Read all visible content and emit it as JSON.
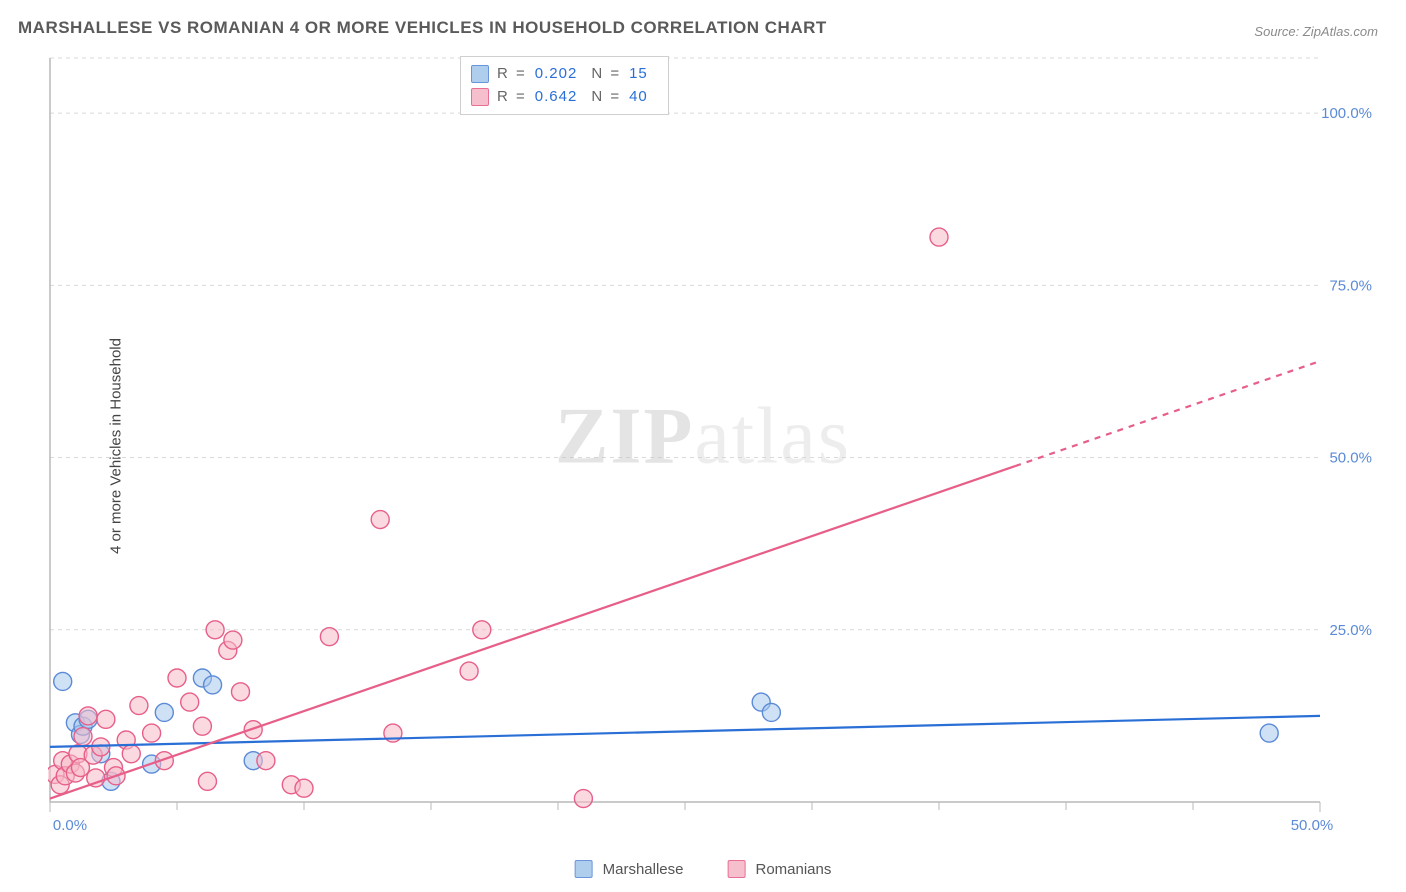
{
  "title": "MARSHALLESE VS ROMANIAN 4 OR MORE VEHICLES IN HOUSEHOLD CORRELATION CHART",
  "source_label": "Source:",
  "source_value": "ZipAtlas.com",
  "ylabel": "4 or more Vehicles in Household",
  "watermark_bold": "ZIP",
  "watermark_light": "atlas",
  "chart": {
    "type": "scatter",
    "xlim": [
      0,
      50
    ],
    "ylim": [
      0,
      108
    ],
    "xtick_major": [
      0,
      50
    ],
    "xtick_minor": [
      5,
      10,
      15,
      20,
      25,
      30,
      35,
      40,
      45
    ],
    "ytick_labels": [
      {
        "v": 25,
        "t": "25.0%"
      },
      {
        "v": 50,
        "t": "50.0%"
      },
      {
        "v": 75,
        "t": "75.0%"
      },
      {
        "v": 100,
        "t": "100.0%"
      }
    ],
    "xtick_labels": [
      {
        "v": 0,
        "t": "0.0%"
      },
      {
        "v": 50,
        "t": "50.0%"
      }
    ],
    "grid_color": "#d9d9d9",
    "axis_color": "#b9b9b9",
    "background": "#ffffff",
    "series": [
      {
        "name": "Marshallese",
        "color_fill": "#a7c8ec",
        "color_stroke": "#5b8ad6",
        "fill_opacity": 0.55,
        "marker_r": 9,
        "line_color": "#2a6fd6",
        "line_width": 2.2,
        "trend": {
          "x1": 0,
          "y1": 8.0,
          "x2": 50,
          "y2": 12.5
        },
        "R": "0.202",
        "N": "15",
        "points": [
          [
            0.5,
            17.5
          ],
          [
            1.0,
            11.5
          ],
          [
            1.2,
            9.8
          ],
          [
            1.3,
            11.0
          ],
          [
            1.5,
            12.0
          ],
          [
            2.0,
            7.0
          ],
          [
            2.4,
            3.0
          ],
          [
            4.0,
            5.5
          ],
          [
            4.5,
            13.0
          ],
          [
            6.0,
            18.0
          ],
          [
            6.4,
            17.0
          ],
          [
            8.0,
            6.0
          ],
          [
            28.0,
            14.5
          ],
          [
            28.4,
            13.0
          ],
          [
            48.0,
            10.0
          ]
        ]
      },
      {
        "name": "Romanians",
        "color_fill": "#f6b9c9",
        "color_stroke": "#e75f89",
        "fill_opacity": 0.55,
        "marker_r": 9,
        "line_color": "#e75f89",
        "line_width": 2.2,
        "trend": {
          "x1": 0,
          "y1": 0.5,
          "x2": 50,
          "y2": 64
        },
        "trend_dash_from_x": 38,
        "R": "0.642",
        "N": "40",
        "points": [
          [
            0.2,
            4.0
          ],
          [
            0.4,
            2.5
          ],
          [
            0.5,
            6.0
          ],
          [
            0.6,
            3.8
          ],
          [
            0.8,
            5.5
          ],
          [
            1.0,
            4.2
          ],
          [
            1.1,
            7.0
          ],
          [
            1.2,
            5.0
          ],
          [
            1.3,
            9.5
          ],
          [
            1.5,
            12.5
          ],
          [
            1.7,
            6.8
          ],
          [
            1.8,
            3.5
          ],
          [
            2.0,
            8.0
          ],
          [
            2.2,
            12.0
          ],
          [
            2.5,
            5.0
          ],
          [
            2.6,
            3.8
          ],
          [
            3.0,
            9.0
          ],
          [
            3.2,
            7.0
          ],
          [
            3.5,
            14.0
          ],
          [
            4.0,
            10.0
          ],
          [
            4.5,
            6.0
          ],
          [
            5.0,
            18.0
          ],
          [
            5.5,
            14.5
          ],
          [
            6.0,
            11.0
          ],
          [
            6.2,
            3.0
          ],
          [
            6.5,
            25.0
          ],
          [
            7.0,
            22.0
          ],
          [
            7.2,
            23.5
          ],
          [
            7.5,
            16.0
          ],
          [
            8.0,
            10.5
          ],
          [
            8.5,
            6.0
          ],
          [
            9.5,
            2.5
          ],
          [
            10.0,
            2.0
          ],
          [
            11.0,
            24.0
          ],
          [
            13.0,
            41.0
          ],
          [
            13.5,
            10.0
          ],
          [
            16.5,
            19.0
          ],
          [
            17.0,
            25.0
          ],
          [
            21.0,
            0.5
          ],
          [
            35.0,
            82.0
          ]
        ]
      }
    ]
  },
  "legend": {
    "series1": "Marshallese",
    "series2": "Romanians"
  }
}
